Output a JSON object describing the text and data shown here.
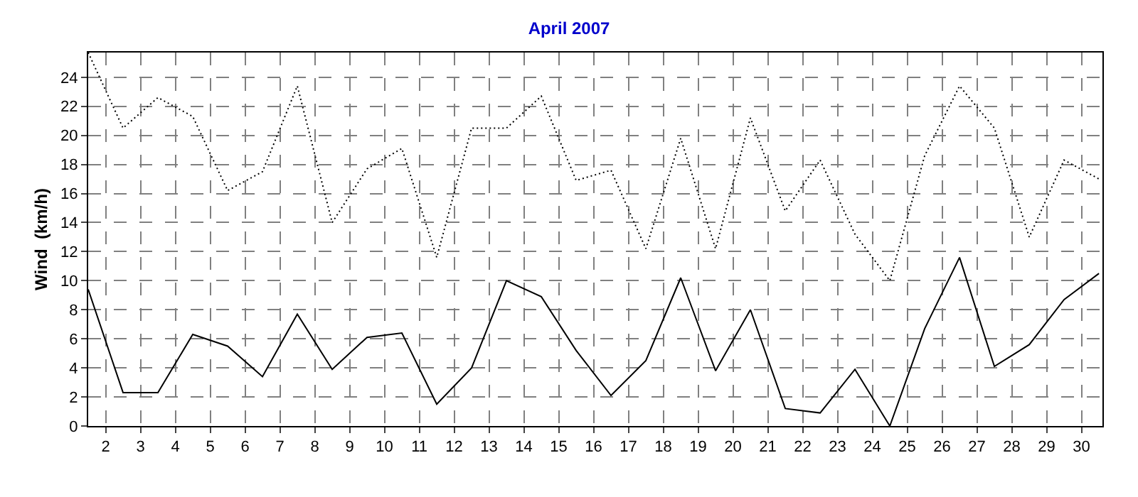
{
  "chart_data": {
    "type": "line",
    "title": "April 2007",
    "ylabel": "Wind  (km/h)",
    "x": [
      1.5,
      2.5,
      3.5,
      4.5,
      5.5,
      6.5,
      7.5,
      8.5,
      9.5,
      10.5,
      11.5,
      12.5,
      13.5,
      14.5,
      15.5,
      16.5,
      17.5,
      18.5,
      19.5,
      20.5,
      21.5,
      22.5,
      23.5,
      24.5,
      25.5,
      26.5,
      27.5,
      28.5,
      29.5,
      30.5
    ],
    "series": [
      {
        "color": "#000000",
        "line_style": "dotted",
        "values": [
          25.7,
          20.5,
          22.6,
          21.3,
          16.2,
          17.5,
          23.4,
          14.0,
          17.7,
          19.1,
          11.6,
          20.5,
          20.5,
          22.7,
          16.9,
          17.6,
          12.2,
          19.8,
          12.2,
          21.2,
          14.8,
          18.3,
          13.2,
          10.0,
          18.6,
          23.4,
          20.5,
          13.0,
          18.3,
          17.0
        ]
      },
      {
        "color": "#000000",
        "line_style": "solid",
        "values": [
          9.4,
          2.3,
          2.3,
          6.3,
          5.5,
          3.4,
          7.7,
          3.9,
          6.1,
          6.4,
          1.5,
          4.0,
          10.0,
          8.9,
          5.2,
          2.1,
          4.5,
          10.2,
          3.8,
          8.0,
          1.2,
          0.9,
          3.9,
          0,
          6.7,
          11.6,
          4.1,
          5.6,
          8.7,
          10.5
        ]
      }
    ],
    "xlim": [
      1.5,
      30.6
    ],
    "xticks": [
      2,
      3,
      4,
      5,
      6,
      7,
      8,
      9,
      10,
      11,
      12,
      13,
      14,
      15,
      16,
      17,
      18,
      19,
      20,
      21,
      22,
      23,
      24,
      25,
      26,
      27,
      28,
      29,
      30
    ],
    "ylim": [
      0,
      25.7
    ],
    "yticks": [
      0,
      2,
      4,
      6,
      8,
      10,
      12,
      14,
      16,
      18,
      20,
      22,
      24
    ],
    "grid": true,
    "marker": "none"
  }
}
